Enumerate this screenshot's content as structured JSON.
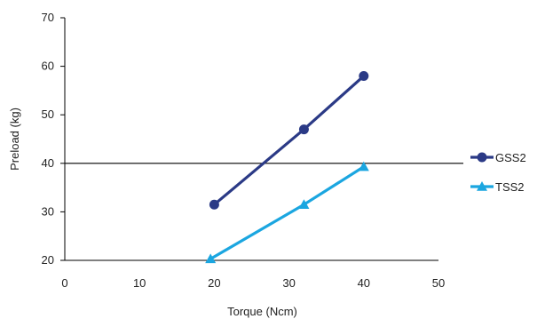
{
  "chart_data": {
    "type": "line",
    "title": "",
    "xlabel": "Torque (Ncm)",
    "ylabel": "Preload (kg)",
    "xlim": [
      0,
      50
    ],
    "ylim": [
      20,
      70
    ],
    "x_ticks": [
      "0",
      "10",
      "20",
      "30",
      "40",
      "50"
    ],
    "y_ticks": [
      "20",
      "30",
      "40",
      "50",
      "60",
      "70"
    ],
    "reference_line": {
      "y": 40,
      "color": "#000000"
    },
    "grid": false,
    "legend_position": "right",
    "series": [
      {
        "name": "GSS2",
        "marker": "circle",
        "color": "#2B3A86",
        "points": [
          {
            "x": 20,
            "y": 31.5
          },
          {
            "x": 32,
            "y": 47
          },
          {
            "x": 40,
            "y": 58
          }
        ]
      },
      {
        "name": "TSS2",
        "marker": "triangle",
        "color": "#1BA6E0",
        "points": [
          {
            "x": 19.5,
            "y": 20.3
          },
          {
            "x": 32,
            "y": 31.5
          },
          {
            "x": 40,
            "y": 39.3
          }
        ]
      }
    ]
  }
}
